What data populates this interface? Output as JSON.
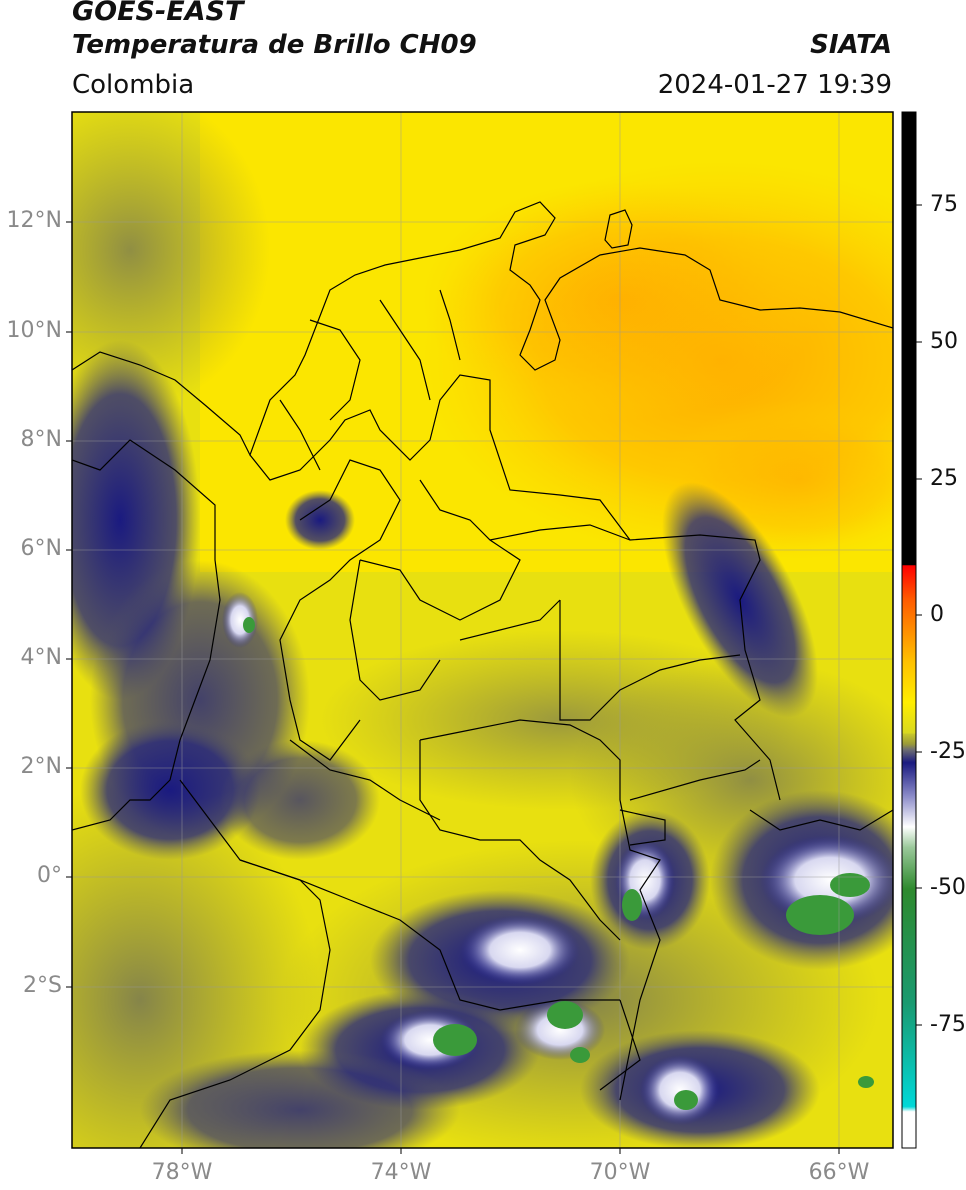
{
  "header": {
    "satellite": "GOES-EAST",
    "product": "Temperatura de Brillo CH09",
    "region": "Colombia",
    "source": "SIATA",
    "datetime": "2024-01-27 19:39"
  },
  "map": {
    "lon_range": [
      -80,
      -65
    ],
    "lat_range": [
      -5,
      14
    ],
    "lat_ticks": [
      "12°N",
      "10°N",
      "8°N",
      "6°N",
      "4°N",
      "2°N",
      "0°",
      "2°S"
    ],
    "lon_ticks": [
      "78°W",
      "74°W",
      "70°W",
      "66°W"
    ]
  },
  "colorbar": {
    "ticks": [
      "75",
      "50",
      "25",
      "0",
      "-25",
      "-50",
      "-75"
    ],
    "colors": {
      "black": "#000000",
      "red": "#ff1a00",
      "orange": "#ff9900",
      "yellow": "#ffee00",
      "olive": "#9a9a30",
      "gray": "#707070",
      "navy": "#1a1a7a",
      "white": "#ffffff",
      "green": "#3a9a3a",
      "cyan": "#00d8d8"
    }
  }
}
